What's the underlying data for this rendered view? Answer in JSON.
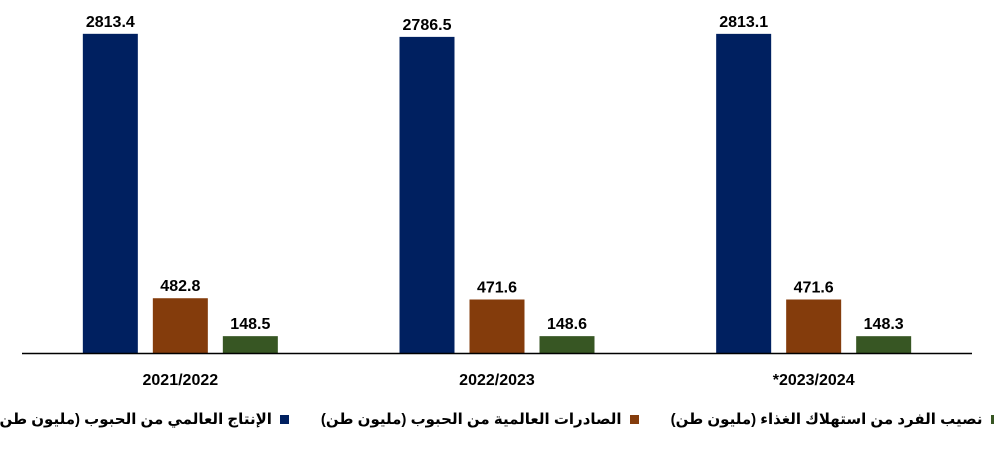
{
  "chart_data": {
    "type": "bar",
    "title": "",
    "xlabel": "",
    "ylabel": "",
    "ylim": [
      0,
      2900
    ],
    "categories": [
      "2021/2022",
      "2022/2023",
      "*2023/2024"
    ],
    "series": [
      {
        "name": "الإنتاج العالمي من الحبوب (مليون طن)",
        "color": "#002060",
        "values": [
          2813.4,
          2786.5,
          2813.1
        ],
        "labels": [
          "2813.4",
          "2786.5",
          "2813.1"
        ]
      },
      {
        "name": "الصادرات العالمية من الحبوب (مليون طن)",
        "color": "#843C0C",
        "values": [
          482.8,
          471.6,
          471.6
        ],
        "labels": [
          "482.8",
          "471.6",
          "471.6"
        ]
      },
      {
        "name": "نصيب الفرد من استهلاك الغذاء (مليون طن)",
        "color": "#375623",
        "values": [
          148.5,
          148.6,
          148.3
        ],
        "labels": [
          "148.5",
          "148.6",
          "148.3"
        ]
      }
    ],
    "grid": false,
    "legend": "bottom"
  }
}
